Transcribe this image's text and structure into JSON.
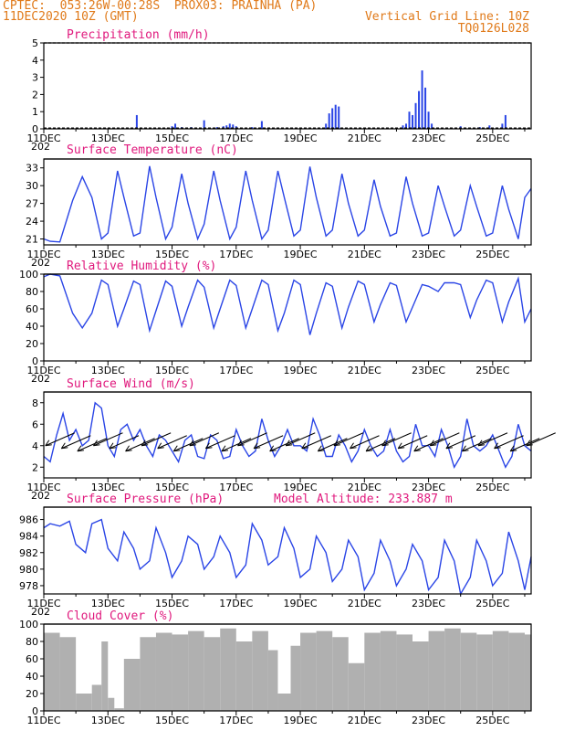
{
  "header": {
    "line1_left": "CPTEC:  053:26W-00:28S  PROX03: PRAINHA (PA)",
    "line2_left": "11DEC2020 10Z (GMT)",
    "line2_right": "Vertical Grid Line: 10Z",
    "line3_right": "TQ0126L028"
  },
  "colors": {
    "line": "#2a45e6",
    "header": "#e07a1a",
    "title": "#e0197d",
    "cloud": "#b0b0b0",
    "arrow": "#000000"
  },
  "x_axis": {
    "labels": [
      "11DEC",
      "13DEC",
      "15DEC",
      "17DEC",
      "19DEC",
      "21DEC",
      "23DEC",
      "25DEC"
    ],
    "year_fragment": "202",
    "start_day": 11,
    "end_day": 26.2
  },
  "chart_data": [
    {
      "type": "bar",
      "title": "Precipitation (mm/h)",
      "ylim": [
        0,
        5
      ],
      "yticks": [
        0,
        1,
        2,
        3,
        4,
        5
      ],
      "x": [
        13.9,
        15.0,
        15.1,
        15.3,
        15.6,
        16.0,
        16.4,
        16.6,
        16.7,
        16.8,
        16.9,
        17.0,
        17.5,
        17.8,
        19.8,
        19.9,
        20.0,
        20.1,
        20.2,
        22.2,
        22.3,
        22.4,
        22.5,
        22.6,
        22.7,
        22.8,
        22.9,
        23.0,
        23.1,
        24.0,
        24.6,
        24.9,
        25.3,
        25.4
      ],
      "values": [
        0.8,
        0.15,
        0.3,
        0.1,
        0.1,
        0.5,
        0.1,
        0.15,
        0.2,
        0.3,
        0.25,
        0.15,
        0.1,
        0.45,
        0.3,
        0.9,
        1.2,
        1.4,
        1.3,
        0.2,
        0.3,
        1.0,
        0.8,
        1.5,
        2.2,
        3.4,
        2.4,
        1.0,
        0.3,
        0.15,
        0.1,
        0.2,
        0.3,
        0.8
      ]
    },
    {
      "type": "line",
      "title": "Surface Temperature (nC)",
      "ylim": [
        20,
        34.5
      ],
      "yticks": [
        21,
        24,
        27,
        30,
        33
      ],
      "x": [
        11.0,
        11.2,
        11.5,
        11.9,
        12.2,
        12.5,
        12.8,
        13.0,
        13.3,
        13.5,
        13.8,
        14.0,
        14.3,
        14.5,
        14.8,
        15.0,
        15.3,
        15.5,
        15.8,
        16.0,
        16.3,
        16.5,
        16.8,
        17.0,
        17.3,
        17.5,
        17.8,
        18.0,
        18.3,
        18.5,
        18.8,
        19.0,
        19.3,
        19.5,
        19.8,
        20.0,
        20.3,
        20.5,
        20.8,
        21.0,
        21.3,
        21.5,
        21.8,
        22.0,
        22.3,
        22.5,
        22.8,
        23.0,
        23.3,
        23.5,
        23.8,
        24.0,
        24.3,
        24.5,
        24.8,
        25.0,
        25.3,
        25.5,
        25.8,
        26.0,
        26.2
      ],
      "values": [
        21.0,
        20.6,
        20.5,
        27.5,
        31.5,
        28.0,
        21.0,
        22.0,
        32.5,
        28.0,
        21.5,
        22.0,
        33.3,
        28.0,
        21.0,
        23.0,
        32.0,
        27.0,
        21.0,
        23.5,
        32.5,
        27.5,
        21.0,
        23.0,
        32.5,
        27.5,
        21.0,
        22.5,
        32.5,
        28.0,
        21.5,
        22.5,
        33.2,
        28.0,
        21.5,
        22.5,
        32.0,
        27.0,
        21.5,
        22.5,
        31.0,
        26.5,
        21.5,
        22.0,
        31.5,
        27.0,
        21.5,
        22.0,
        30.0,
        26.5,
        21.5,
        22.5,
        30.0,
        26.5,
        21.5,
        22.0,
        30.0,
        26.0,
        21.0,
        28.0,
        29.5
      ]
    },
    {
      "type": "line",
      "title": "Relative Humidity (%)",
      "ylim": [
        0,
        100
      ],
      "yticks": [
        0,
        20,
        40,
        60,
        80,
        100
      ],
      "x": [
        11.0,
        11.2,
        11.5,
        11.9,
        12.2,
        12.5,
        12.8,
        13.0,
        13.3,
        13.5,
        13.8,
        14.0,
        14.3,
        14.5,
        14.8,
        15.0,
        15.3,
        15.5,
        15.8,
        16.0,
        16.3,
        16.5,
        16.8,
        17.0,
        17.3,
        17.5,
        17.8,
        18.0,
        18.3,
        18.5,
        18.8,
        19.0,
        19.3,
        19.5,
        19.8,
        20.0,
        20.3,
        20.5,
        20.8,
        21.0,
        21.3,
        21.5,
        21.8,
        22.0,
        22.3,
        22.5,
        22.8,
        23.0,
        23.3,
        23.5,
        23.8,
        24.0,
        24.3,
        24.5,
        24.8,
        25.0,
        25.3,
        25.5,
        25.8,
        26.0,
        26.2
      ],
      "values": [
        97,
        100,
        98,
        55,
        38,
        55,
        93,
        88,
        40,
        60,
        92,
        88,
        35,
        58,
        92,
        86,
        40,
        62,
        93,
        85,
        38,
        60,
        93,
        87,
        38,
        60,
        93,
        88,
        35,
        55,
        93,
        88,
        30,
        55,
        90,
        86,
        38,
        62,
        92,
        88,
        45,
        65,
        90,
        87,
        45,
        62,
        88,
        86,
        80,
        90,
        90,
        88,
        50,
        70,
        93,
        90,
        45,
        68,
        95,
        45,
        60
      ]
    },
    {
      "type": "line",
      "title": "Surface Wind (m/s)",
      "ylim": [
        1,
        9
      ],
      "yticks": [
        2,
        4,
        6,
        8
      ],
      "x": [
        11.0,
        11.2,
        11.4,
        11.6,
        11.8,
        12.0,
        12.2,
        12.4,
        12.6,
        12.8,
        13.0,
        13.2,
        13.4,
        13.6,
        13.8,
        14.0,
        14.2,
        14.4,
        14.6,
        14.8,
        15.0,
        15.2,
        15.4,
        15.6,
        15.8,
        16.0,
        16.2,
        16.4,
        16.6,
        16.8,
        17.0,
        17.2,
        17.4,
        17.6,
        17.8,
        18.0,
        18.2,
        18.4,
        18.6,
        18.8,
        19.0,
        19.2,
        19.4,
        19.6,
        19.8,
        20.0,
        20.2,
        20.4,
        20.6,
        20.8,
        21.0,
        21.2,
        21.4,
        21.6,
        21.8,
        22.0,
        22.2,
        22.4,
        22.6,
        22.8,
        23.0,
        23.2,
        23.4,
        23.6,
        23.8,
        24.0,
        24.2,
        24.4,
        24.6,
        24.8,
        25.0,
        25.2,
        25.4,
        25.6,
        25.8,
        26.0,
        26.2
      ],
      "values": [
        3.0,
        2.5,
        5.0,
        7.0,
        4.5,
        5.5,
        4.0,
        4.5,
        8.0,
        7.5,
        4.0,
        3.0,
        5.5,
        6.0,
        4.5,
        5.5,
        4.0,
        3.0,
        5.0,
        4.5,
        3.5,
        2.5,
        4.5,
        5.0,
        3.0,
        2.8,
        5.0,
        4.5,
        2.8,
        3.0,
        5.5,
        4.0,
        3.0,
        3.5,
        6.5,
        4.5,
        3.0,
        4.0,
        5.5,
        4.0,
        4.0,
        3.5,
        6.5,
        5.0,
        3.0,
        3.0,
        5.0,
        4.0,
        2.5,
        3.5,
        5.5,
        4.0,
        3.0,
        3.5,
        5.5,
        3.5,
        2.5,
        3.0,
        6.0,
        4.0,
        4.0,
        3.0,
        5.5,
        4.0,
        2.0,
        3.0,
        6.5,
        4.0,
        3.5,
        4.0,
        5.0,
        3.5,
        2.0,
        3.0,
        6.0,
        4.0,
        3.5
      ]
    },
    {
      "type": "line",
      "title": "Surface Pressure (hPa)",
      "annotation": "Model Altitude: 233.887  m",
      "ylim": [
        977,
        987.5
      ],
      "yticks": [
        978,
        980,
        982,
        984,
        986
      ],
      "x": [
        11.0,
        11.2,
        11.5,
        11.8,
        12.0,
        12.3,
        12.5,
        12.8,
        13.0,
        13.3,
        13.5,
        13.8,
        14.0,
        14.3,
        14.5,
        14.8,
        15.0,
        15.3,
        15.5,
        15.8,
        16.0,
        16.3,
        16.5,
        16.8,
        17.0,
        17.3,
        17.5,
        17.8,
        18.0,
        18.3,
        18.5,
        18.8,
        19.0,
        19.3,
        19.5,
        19.8,
        20.0,
        20.3,
        20.5,
        20.8,
        21.0,
        21.3,
        21.5,
        21.8,
        22.0,
        22.3,
        22.5,
        22.8,
        23.0,
        23.3,
        23.5,
        23.8,
        24.0,
        24.3,
        24.5,
        24.8,
        25.0,
        25.3,
        25.5,
        25.8,
        26.0,
        26.2
      ],
      "values": [
        985.0,
        985.5,
        985.2,
        985.8,
        983.0,
        982.0,
        985.5,
        986.0,
        982.5,
        981.0,
        984.5,
        982.5,
        980.0,
        981.0,
        985.0,
        982.0,
        979.0,
        981.0,
        984.0,
        983.0,
        980.0,
        981.5,
        984.0,
        982.0,
        979.0,
        980.5,
        985.5,
        983.5,
        980.5,
        981.5,
        985.0,
        982.5,
        979.0,
        980.0,
        984.0,
        982.0,
        978.5,
        980.0,
        983.5,
        981.5,
        977.5,
        979.5,
        983.5,
        981.0,
        978.0,
        980.0,
        983.0,
        981.0,
        977.5,
        979.0,
        983.5,
        981.0,
        977.0,
        979.0,
        983.5,
        981.0,
        978.0,
        979.5,
        984.5,
        981.0,
        977.5,
        981.5
      ]
    },
    {
      "type": "bar",
      "title": "Cloud Cover (%)",
      "ylim": [
        0,
        100
      ],
      "yticks": [
        0,
        20,
        40,
        60,
        80,
        100
      ],
      "x": [
        11.0,
        11.5,
        12.0,
        12.5,
        12.8,
        13.0,
        13.2,
        13.5,
        14.0,
        14.5,
        15.0,
        15.5,
        16.0,
        16.5,
        17.0,
        17.5,
        18.0,
        18.3,
        18.7,
        19.0,
        19.5,
        20.0,
        20.5,
        21.0,
        21.5,
        22.0,
        22.5,
        23.0,
        23.5,
        24.0,
        24.5,
        25.0,
        25.5,
        26.0
      ],
      "values": [
        90,
        85,
        20,
        30,
        80,
        15,
        3,
        60,
        85,
        90,
        88,
        92,
        85,
        95,
        80,
        92,
        70,
        20,
        75,
        90,
        92,
        85,
        55,
        90,
        92,
        88,
        80,
        92,
        95,
        90,
        88,
        92,
        90,
        88
      ]
    }
  ]
}
